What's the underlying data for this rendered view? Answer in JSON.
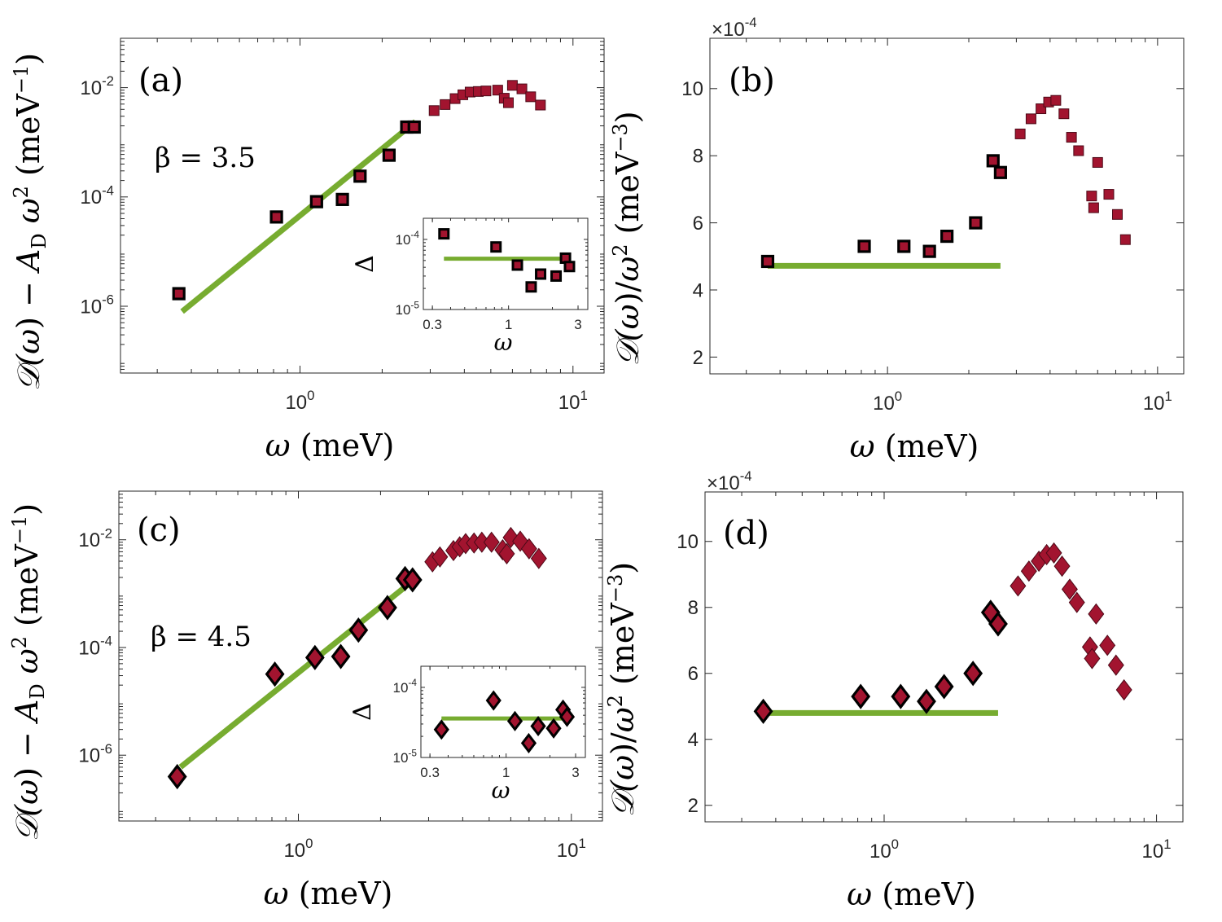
{
  "colors": {
    "fit": "#77ac30",
    "marker_fill": "#a2142f",
    "marker_edge_low": "#000000",
    "marker_edge_high": "#4d0a18",
    "axes": "#262626"
  },
  "chart_data": [
    {
      "id": "a",
      "type": "scatter",
      "yscale": "log",
      "xscale": "log",
      "panel_label": "(a)",
      "annotation": "β = 3.5",
      "xlabel": "ω (meV)",
      "ylabel": "𝒟(ω) − A_D ω² (meV⁻¹)",
      "xlim": [
        0.22,
        13
      ],
      "ylim": [
        6e-08,
        0.08
      ],
      "xticks": [
        {
          "v": 1,
          "label": "10",
          "exp": "0"
        },
        {
          "v": 10,
          "label": "10",
          "exp": "1"
        }
      ],
      "yticks": [
        {
          "v": 1e-06,
          "label": "10",
          "exp": "-6"
        },
        {
          "v": 0.0001,
          "label": "10",
          "exp": "-4"
        },
        {
          "v": 0.01,
          "label": "10",
          "exp": "-2"
        }
      ],
      "marker": "square",
      "x": [
        0.36,
        0.82,
        1.15,
        1.43,
        1.66,
        2.12,
        2.46,
        2.62,
        3.1,
        3.4,
        3.7,
        3.95,
        4.2,
        4.5,
        4.8,
        5.3,
        5.6,
        5.8,
        6.0,
        6.5,
        7.0,
        7.6
      ],
      "y": [
        1.7e-06,
        4.3e-05,
        8.2e-05,
        9e-05,
        0.00024,
        0.00058,
        0.0019,
        0.0019,
        0.0038,
        0.0049,
        0.0063,
        0.0074,
        0.0083,
        0.0085,
        0.0087,
        0.009,
        0.0064,
        0.0053,
        0.011,
        0.0095,
        0.0068,
        0.0048
      ],
      "fit_x": [
        0.37,
        2.65
      ],
      "fit_y": [
        8e-07,
        0.0024
      ],
      "inset": {
        "ylabel": "Δ",
        "xlabel": "ω",
        "xlim": [
          0.26,
          3.5
        ],
        "ylim": [
          1e-05,
          0.0002
        ],
        "xticks": [
          {
            "v": 0.3,
            "label": "0.3"
          },
          {
            "v": 1,
            "label": "1"
          },
          {
            "v": 3,
            "label": "3"
          }
        ],
        "yticks": [
          {
            "v": 1e-05,
            "label": "10",
            "exp": "-5"
          },
          {
            "v": 0.0001,
            "label": "10",
            "exp": "-4"
          }
        ],
        "x": [
          0.36,
          0.82,
          1.15,
          1.43,
          1.66,
          2.12,
          2.46,
          2.62
        ],
        "y": [
          0.00012,
          7.8e-05,
          4.3e-05,
          2.1e-05,
          3.2e-05,
          3e-05,
          5.4e-05,
          4.1e-05
        ],
        "fit_x": [
          0.36,
          2.62
        ],
        "fit_y": [
          5.3e-05,
          5.3e-05
        ]
      }
    },
    {
      "id": "b",
      "type": "scatter",
      "xscale": "log",
      "yscale": "linear",
      "panel_label": "(b)",
      "xlabel": "ω (meV)",
      "ylabel": "𝒟(ω)/ω² (meV⁻³)",
      "scale_label": "×10",
      "scale_exp": "-4",
      "xlim": [
        0.22,
        12.5
      ],
      "ylim": [
        1.5,
        11.5
      ],
      "xticks": [
        {
          "v": 1,
          "label": "10",
          "exp": "0"
        },
        {
          "v": 10,
          "label": "10",
          "exp": "1"
        }
      ],
      "yticks": [
        {
          "v": 2,
          "label": "2"
        },
        {
          "v": 4,
          "label": "4"
        },
        {
          "v": 6,
          "label": "6"
        },
        {
          "v": 8,
          "label": "8"
        },
        {
          "v": 10,
          "label": "10"
        }
      ],
      "marker": "square",
      "x": [
        0.36,
        0.82,
        1.15,
        1.43,
        1.66,
        2.12,
        2.46,
        2.62,
        3.1,
        3.4,
        3.7,
        3.95,
        4.2,
        4.5,
        4.8,
        5.1,
        5.7,
        5.8,
        6.0,
        6.6,
        7.1,
        7.6
      ],
      "y": [
        4.85,
        5.3,
        5.3,
        5.15,
        5.6,
        6.0,
        7.85,
        7.5,
        8.65,
        9.1,
        9.4,
        9.6,
        9.65,
        9.25,
        8.55,
        8.15,
        6.8,
        6.45,
        7.8,
        6.85,
        6.25,
        5.5
      ],
      "fit_x": [
        0.36,
        2.62
      ],
      "fit_y": [
        4.72,
        4.72
      ]
    },
    {
      "id": "c",
      "type": "scatter",
      "xscale": "log",
      "yscale": "log",
      "panel_label": "(c)",
      "annotation": "β = 4.5",
      "xlabel": "ω (meV)",
      "ylabel": "𝒟(ω) − A_D ω² (meV⁻¹)",
      "xlim": [
        0.22,
        13
      ],
      "ylim": [
        6e-08,
        0.08
      ],
      "xticks": [
        {
          "v": 1,
          "label": "10",
          "exp": "0"
        },
        {
          "v": 10,
          "label": "10",
          "exp": "1"
        }
      ],
      "yticks": [
        {
          "v": 1e-06,
          "label": "10",
          "exp": "-6"
        },
        {
          "v": 0.0001,
          "label": "10",
          "exp": "-4"
        },
        {
          "v": 0.01,
          "label": "10",
          "exp": "-2"
        }
      ],
      "marker": "diamond",
      "x": [
        0.36,
        0.82,
        1.15,
        1.43,
        1.66,
        2.12,
        2.46,
        2.62,
        3.1,
        3.3,
        3.7,
        3.9,
        4.1,
        4.4,
        4.7,
        5.1,
        5.6,
        5.8,
        6.0,
        6.5,
        7.0,
        7.6
      ],
      "y": [
        4e-07,
        3.2e-05,
        6.5e-05,
        6.8e-05,
        0.00021,
        0.00055,
        0.0019,
        0.0018,
        0.0039,
        0.0048,
        0.0063,
        0.0074,
        0.0085,
        0.0087,
        0.009,
        0.009,
        0.0065,
        0.0055,
        0.011,
        0.0094,
        0.0068,
        0.0045
      ],
      "fit_x": [
        0.37,
        2.65
      ],
      "fit_y": [
        6e-07,
        0.0018
      ],
      "inset": {
        "ylabel": "Δ",
        "xlabel": "ω",
        "xlim": [
          0.26,
          3.5
        ],
        "ylim": [
          1e-05,
          0.0002
        ],
        "xticks": [
          {
            "v": 0.3,
            "label": "0.3"
          },
          {
            "v": 1,
            "label": "1"
          },
          {
            "v": 3,
            "label": "3"
          }
        ],
        "yticks": [
          {
            "v": 1e-05,
            "label": "10",
            "exp": "-5"
          },
          {
            "v": 0.0001,
            "label": "10",
            "exp": "-4"
          }
        ],
        "x": [
          0.36,
          0.82,
          1.15,
          1.43,
          1.66,
          2.12,
          2.46,
          2.62
        ],
        "y": [
          2.5e-05,
          6.5e-05,
          3.3e-05,
          1.6e-05,
          2.8e-05,
          2.6e-05,
          4.8e-05,
          3.8e-05
        ],
        "fit_x": [
          0.36,
          2.62
        ],
        "fit_y": [
          3.6e-05,
          3.6e-05
        ]
      }
    },
    {
      "id": "d",
      "type": "scatter",
      "xscale": "log",
      "yscale": "linear",
      "panel_label": "(d)",
      "xlabel": "ω (meV)",
      "ylabel": "𝒟(ω)/ω² (meV⁻³)",
      "scale_label": "×10",
      "scale_exp": "-4",
      "xlim": [
        0.22,
        12.5
      ],
      "ylim": [
        1.5,
        11.5
      ],
      "xticks": [
        {
          "v": 1,
          "label": "10",
          "exp": "0"
        },
        {
          "v": 10,
          "label": "10",
          "exp": "1"
        }
      ],
      "yticks": [
        {
          "v": 2,
          "label": "2"
        },
        {
          "v": 4,
          "label": "4"
        },
        {
          "v": 6,
          "label": "6"
        },
        {
          "v": 8,
          "label": "8"
        },
        {
          "v": 10,
          "label": "10"
        }
      ],
      "marker": "diamond",
      "x": [
        0.36,
        0.82,
        1.15,
        1.43,
        1.66,
        2.12,
        2.46,
        2.62,
        3.1,
        3.4,
        3.7,
        3.95,
        4.2,
        4.5,
        4.8,
        5.1,
        5.7,
        5.8,
        6.0,
        6.6,
        7.1,
        7.6
      ],
      "y": [
        4.85,
        5.3,
        5.3,
        5.15,
        5.6,
        6.0,
        7.85,
        7.5,
        8.65,
        9.1,
        9.4,
        9.6,
        9.65,
        9.25,
        8.55,
        8.15,
        6.8,
        6.45,
        7.8,
        6.85,
        6.25,
        5.5
      ],
      "fit_x": [
        0.36,
        2.62
      ],
      "fit_y": [
        4.8,
        4.8
      ]
    }
  ]
}
